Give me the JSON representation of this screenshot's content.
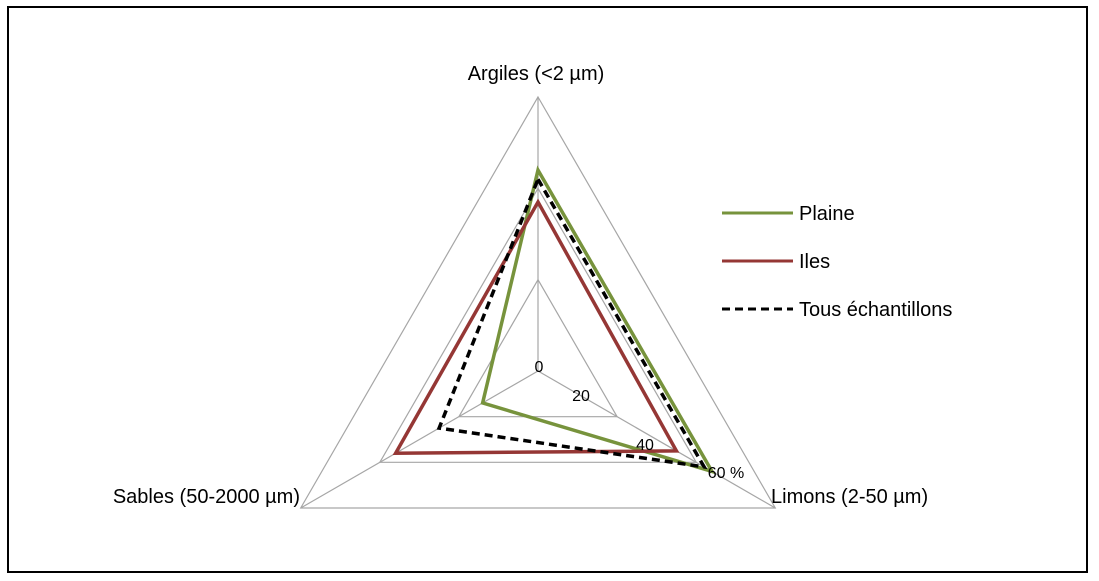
{
  "chart_data": {
    "type": "radar",
    "axes": [
      "Argiles (<2 µm)",
      "Limons (2-50  µm)",
      "Sables (50-2000 µm)"
    ],
    "rmax": 60,
    "ticks": [
      {
        "value": 0,
        "label": "0"
      },
      {
        "value": 20,
        "label": "20"
      },
      {
        "value": 40,
        "label": "40"
      },
      {
        "value": 60,
        "label": "60 %"
      }
    ],
    "grid": true,
    "legend_position": "right",
    "series": [
      {
        "name": "Plaine",
        "values": [
          44,
          44,
          14
        ],
        "color": "#77933C",
        "dash": "solid"
      },
      {
        "name": "Iles",
        "values": [
          37,
          35,
          36
        ],
        "color": "#953735",
        "dash": "solid"
      },
      {
        "name": "Tous échantillons",
        "values": [
          42,
          42,
          25
        ],
        "color": "#000000",
        "dash": "dashed"
      }
    ]
  }
}
